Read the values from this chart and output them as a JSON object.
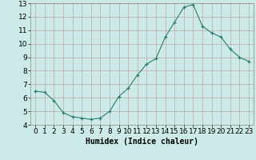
{
  "x": [
    0,
    1,
    2,
    3,
    4,
    5,
    6,
    7,
    8,
    9,
    10,
    11,
    12,
    13,
    14,
    15,
    16,
    17,
    18,
    19,
    20,
    21,
    22,
    23
  ],
  "y": [
    6.5,
    6.4,
    5.8,
    4.9,
    4.6,
    4.5,
    4.4,
    4.5,
    5.0,
    6.1,
    6.7,
    7.7,
    8.5,
    8.9,
    10.5,
    11.6,
    12.7,
    12.9,
    11.3,
    10.8,
    10.5,
    9.6,
    9.0,
    8.7
  ],
  "line_color": "#2d7d6e",
  "marker": "+",
  "marker_size": 3,
  "bg_color": "#cceae8",
  "grid_color": "#c0a8a8",
  "xlabel": "Humidex (Indice chaleur)",
  "xlim": [
    -0.5,
    23.5
  ],
  "ylim": [
    4,
    13
  ],
  "yticks": [
    4,
    5,
    6,
    7,
    8,
    9,
    10,
    11,
    12,
    13
  ],
  "xticks": [
    0,
    1,
    2,
    3,
    4,
    5,
    6,
    7,
    8,
    9,
    10,
    11,
    12,
    13,
    14,
    15,
    16,
    17,
    18,
    19,
    20,
    21,
    22,
    23
  ],
  "xlabel_fontsize": 7,
  "tick_fontsize": 6.5
}
